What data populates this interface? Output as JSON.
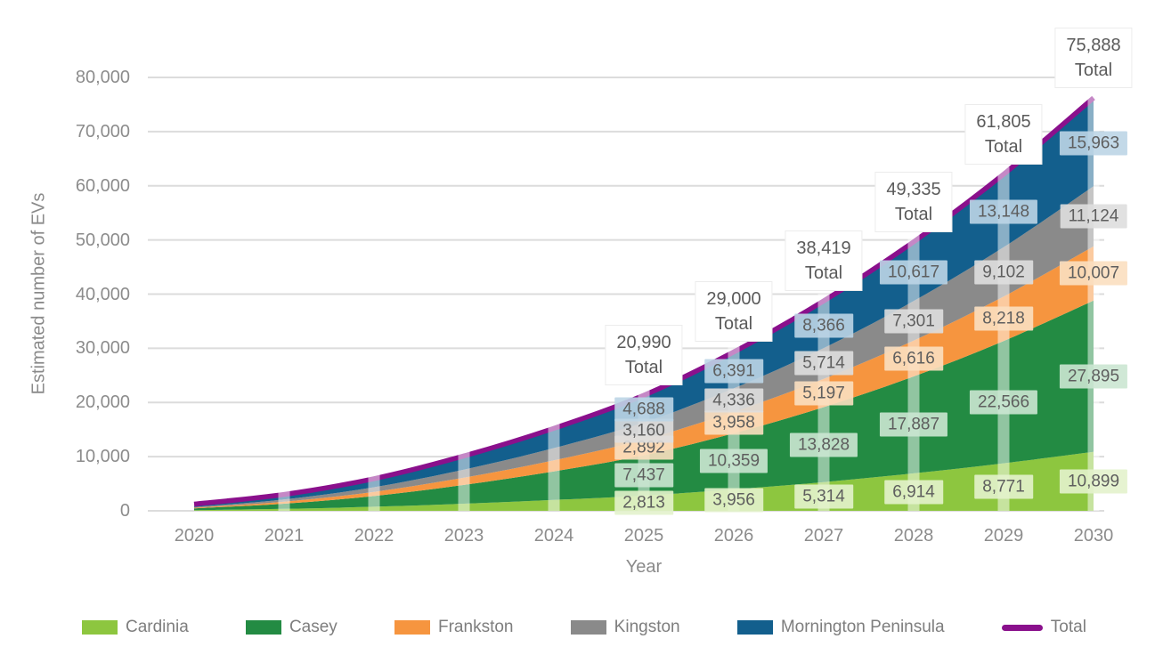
{
  "chart_data": {
    "type": "area",
    "stacked": true,
    "title": "",
    "xlabel": "Year",
    "ylabel": "Estimated number of EVs",
    "x": [
      2020,
      2021,
      2022,
      2023,
      2024,
      2025,
      2026,
      2027,
      2028,
      2029,
      2030
    ],
    "ylim": [
      0,
      80000
    ],
    "yticks": [
      0,
      10000,
      20000,
      30000,
      40000,
      50000,
      60000,
      70000,
      80000
    ],
    "grid": "horizontal",
    "legend_position": "bottom",
    "value_labels_from_year": 2025,
    "total_label_word": "Total",
    "series": [
      {
        "name": "Cardinia",
        "color": "#8DC63F",
        "label_bg": "rgba(227,242,204,0.9)",
        "values": [
          120,
          360,
          750,
          1310,
          2000,
          2813,
          3956,
          5314,
          6914,
          8771,
          10899
        ]
      },
      {
        "name": "Casey",
        "color": "#238B43",
        "label_bg": "rgba(203,230,210,0.9)",
        "values": [
          320,
          955,
          1980,
          3470,
          5280,
          7437,
          10359,
          13828,
          17887,
          22566,
          27895
        ]
      },
      {
        "name": "Frankston",
        "color": "#F6953F",
        "label_bg": "rgba(251,223,192,0.9)",
        "values": [
          125,
          370,
          770,
          1350,
          2050,
          2892,
          3958,
          5197,
          6616,
          8218,
          10007
        ]
      },
      {
        "name": "Kingston",
        "color": "#8A8A8A",
        "label_bg": "rgba(222,222,222,0.9)",
        "values": [
          135,
          410,
          845,
          1480,
          2250,
          3160,
          4336,
          5714,
          7301,
          9102,
          11124
        ]
      },
      {
        "name": "Mornington Peninsula",
        "color": "#135F8D",
        "label_bg": "rgba(188,213,230,0.9)",
        "values": [
          200,
          605,
          1255,
          2190,
          3320,
          4688,
          6391,
          8366,
          10617,
          13148,
          15963
        ]
      }
    ],
    "total": {
      "name": "Total",
      "color": "#8A108C",
      "values": [
        900,
        2700,
        5600,
        9800,
        14900,
        20990,
        29000,
        38419,
        49335,
        61805,
        75888
      ]
    }
  },
  "colors": {
    "background": "#FFFFFF",
    "gridline": "#DCDCDC",
    "tick_text": "#8C8C8C",
    "axis_title_text": "#8A8A8A",
    "value_label_text": "#5E5E5E",
    "total_box_border": "#ECECEC",
    "year_stripe": "rgba(255,255,255,0.5)"
  }
}
